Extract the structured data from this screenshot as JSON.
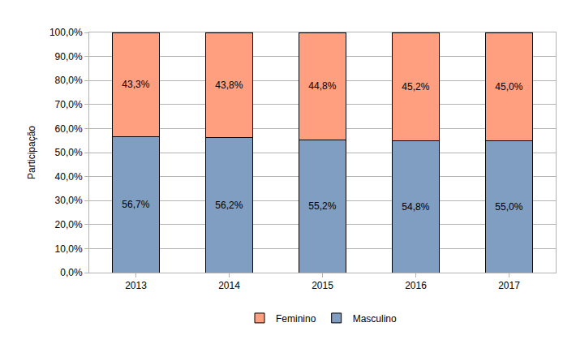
{
  "chart_data": {
    "type": "bar",
    "stacked": true,
    "data_labels": true,
    "grid": true,
    "legend": "bottom",
    "y_label": "Participação",
    "categories": [
      "2013",
      "2014",
      "2015",
      "2016",
      "2017"
    ],
    "series": [
      {
        "name": "Masculino",
        "color": "#7f9ec1",
        "values": [
          56.7,
          56.2,
          55.2,
          54.8,
          55.0
        ],
        "value_labels": [
          "56,7%",
          "56,2%",
          "55,2%",
          "54,8%",
          "55,0%"
        ]
      },
      {
        "name": "Feminino",
        "color": "#ff9f80",
        "values": [
          43.3,
          43.8,
          44.8,
          45.2,
          45.0
        ],
        "value_labels": [
          "43,3%",
          "43,8%",
          "44,8%",
          "45,2%",
          "45,0%"
        ]
      }
    ],
    "ylim": [
      0,
      100
    ],
    "yticks": [
      {
        "value": 0,
        "label": "0,0%"
      },
      {
        "value": 10,
        "label": "10,0%"
      },
      {
        "value": 20,
        "label": "20,0%"
      },
      {
        "value": 30,
        "label": "30,0%"
      },
      {
        "value": 40,
        "label": "40,0%"
      },
      {
        "value": 50,
        "label": "50,0%"
      },
      {
        "value": 60,
        "label": "60,0%"
      },
      {
        "value": 70,
        "label": "70,0%"
      },
      {
        "value": 80,
        "label": "80,0%"
      },
      {
        "value": 90,
        "label": "90,0%"
      },
      {
        "value": 100,
        "label": "100,0%"
      }
    ]
  }
}
